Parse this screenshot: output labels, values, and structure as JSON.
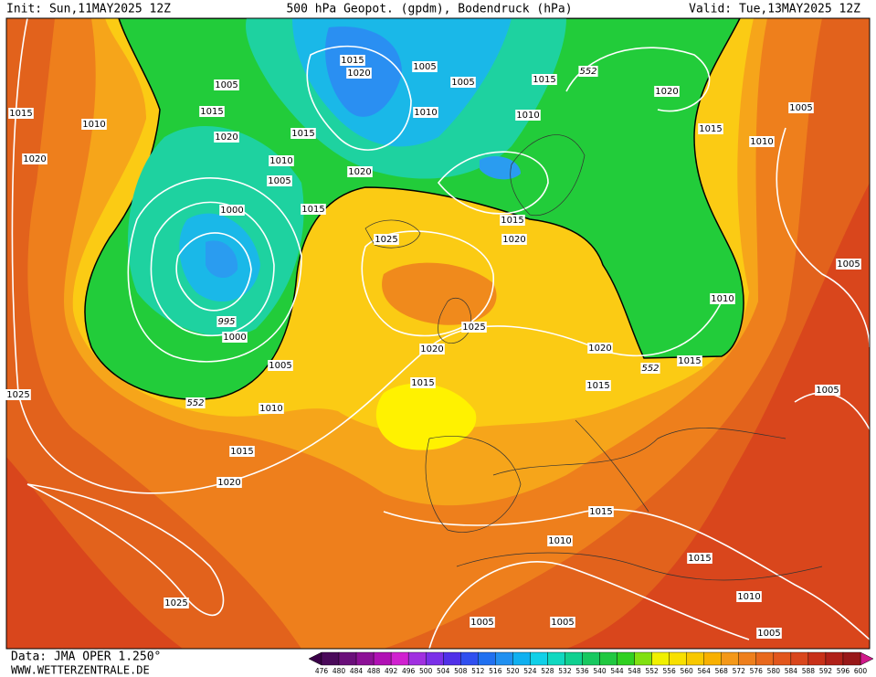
{
  "header": {
    "init": "Init: Sun,11MAY2025 12Z",
    "title": "500 hPa Geopot. (gpdm), Bodendruck (hPa)",
    "valid": "Valid: Tue,13MAY2025 12Z"
  },
  "footer": {
    "data": "Data: JMA OPER 1.250°",
    "site": "WWW.WETTERZENTRALE.DE"
  },
  "isobar_labels": [
    "1015",
    "1020",
    "1005",
    "1015",
    "552",
    "1020",
    "1005",
    "1005",
    "1015",
    "1010",
    "1015",
    "1010",
    "1010",
    "1015",
    "1005",
    "1020",
    "1015",
    "1010",
    "1020",
    "1010",
    "1020",
    "1005",
    "1015",
    "1000",
    "1015",
    "1025",
    "1020",
    "1005",
    "1010",
    "995",
    "1000",
    "1025",
    "1020",
    "1020",
    "1005",
    "1015",
    "552",
    "1015",
    "1015",
    "1025",
    "1005",
    "552",
    "1010",
    "1015",
    "1020",
    "1015",
    "1010",
    "1015",
    "1010",
    "1025",
    "1005",
    "1005",
    "1005"
  ],
  "colorbar": {
    "ticks": [
      476,
      480,
      484,
      488,
      492,
      496,
      500,
      504,
      508,
      512,
      516,
      520,
      524,
      528,
      532,
      536,
      540,
      544,
      548,
      552,
      556,
      560,
      564,
      568,
      572,
      576,
      580,
      584,
      588,
      592,
      596,
      600
    ]
  }
}
